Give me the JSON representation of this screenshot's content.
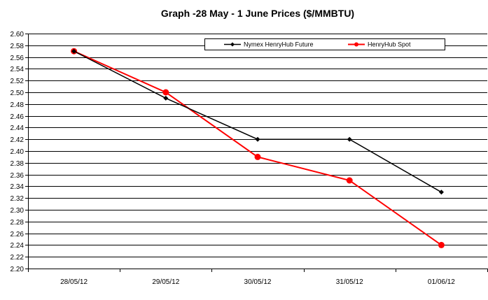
{
  "chart_data": {
    "type": "line",
    "title": "Graph -28 May - 1 June Prices ($/MMBTU)",
    "categories": [
      "28/05/12",
      "29/05/12",
      "30/05/12",
      "31/05/12",
      "01/06/12"
    ],
    "series": [
      {
        "name": "Nymex HenryHub Future",
        "values": [
          2.57,
          2.49,
          2.42,
          2.42,
          2.33
        ],
        "color": "#000000",
        "marker": "diamond"
      },
      {
        "name": "HenryHub Spot",
        "values": [
          2.57,
          2.5,
          2.39,
          2.35,
          2.24
        ],
        "color": "#ff0000",
        "marker": "circle"
      }
    ],
    "ylim": [
      2.2,
      2.6
    ],
    "ystep": 0.02,
    "grid": "horizontal",
    "legend_position": "top-right",
    "xlabel": "",
    "ylabel": ""
  }
}
